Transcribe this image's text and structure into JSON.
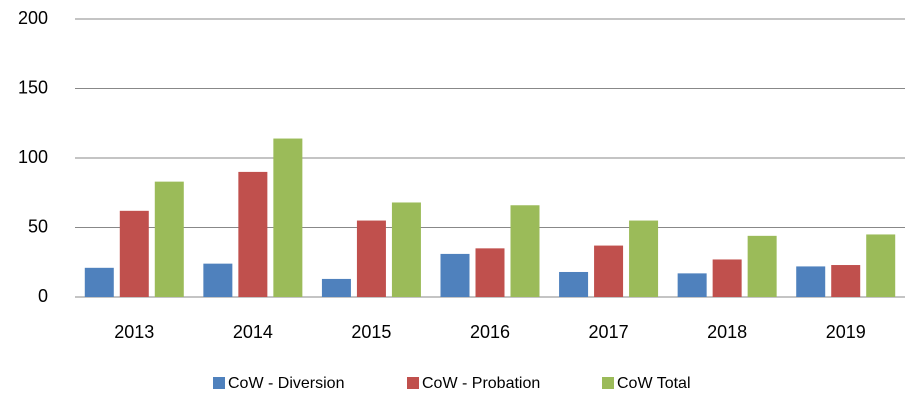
{
  "chart_data": {
    "type": "bar",
    "categories": [
      "2013",
      "2014",
      "2015",
      "2016",
      "2017",
      "2018",
      "2019"
    ],
    "series": [
      {
        "name": "CoW - Diversion",
        "color": "#4f81bd",
        "values": [
          21,
          24,
          13,
          31,
          18,
          17,
          22
        ]
      },
      {
        "name": "CoW - Probation",
        "color": "#c0504d",
        "values": [
          62,
          90,
          55,
          35,
          37,
          27,
          23
        ]
      },
      {
        "name": "CoW Total",
        "color": "#9bbb59",
        "values": [
          83,
          114,
          68,
          66,
          55,
          44,
          45
        ]
      }
    ],
    "ylim": [
      0,
      200
    ],
    "yticks": [
      0,
      50,
      100,
      150,
      200
    ],
    "grid": true,
    "legend": "bottom"
  }
}
